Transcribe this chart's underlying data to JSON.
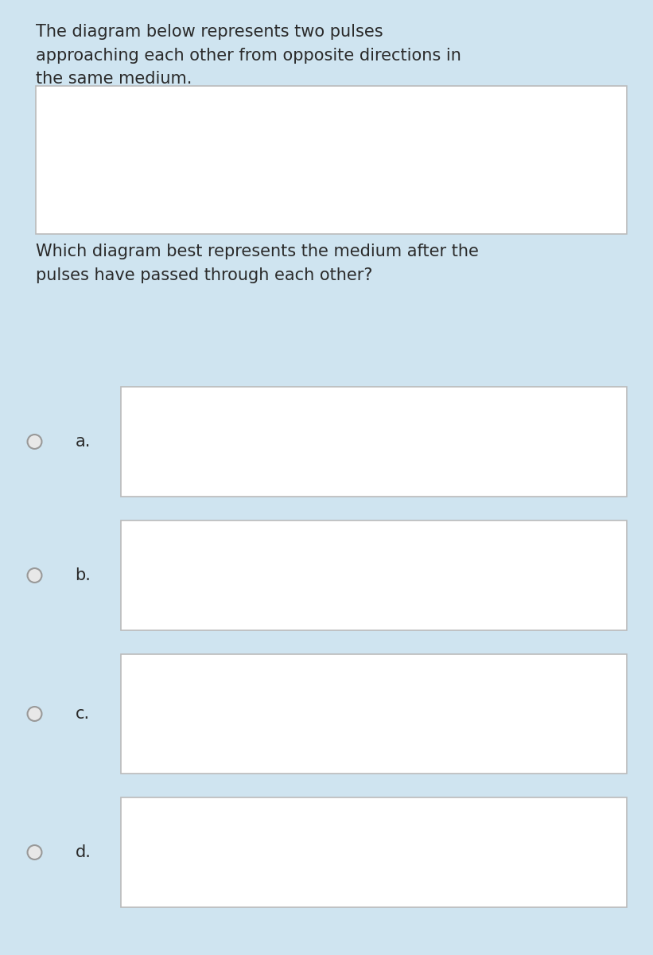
{
  "bg_color": "#cfe4f0",
  "panel_color": "#ffffff",
  "line_color": "#555555",
  "text_color": "#2a2a2a",
  "title_text": "The diagram below represents two pulses\napproaching each other from opposite directions in\nthe same medium.",
  "question_text": "Which diagram best represents the medium after the\npulses have passed through each other?",
  "labels": [
    "a.",
    "b.",
    "c.",
    "d."
  ],
  "font_size_title": 15,
  "font_size_label": 15,
  "radio_color": "#cccccc"
}
